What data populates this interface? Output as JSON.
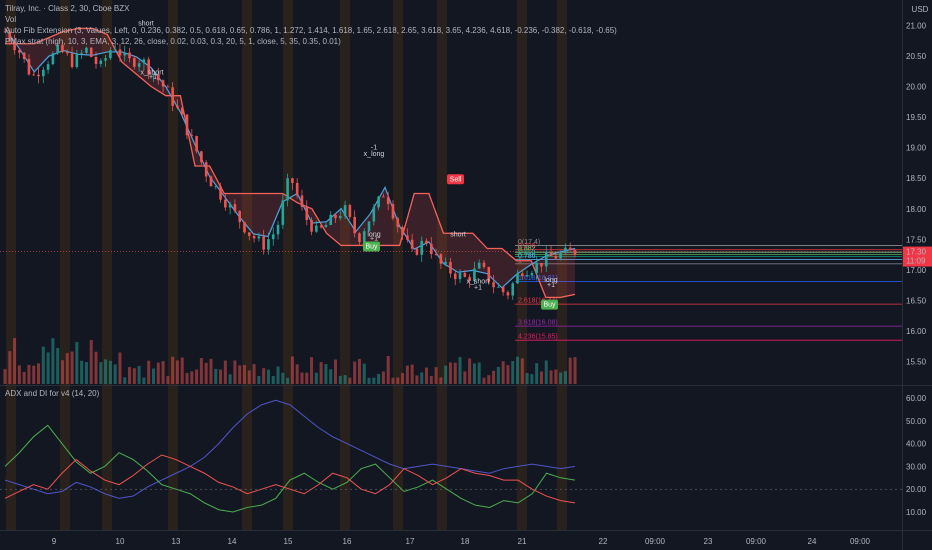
{
  "legend": {
    "title": "Tilray, Inc. · Class 2, 30, Cboe BZX",
    "vol": "Vol",
    "fib": "Auto Fib Extension (3, Values, Left, 0, 0.236, 0.382, 0.5, 0.618, 0.65, 0.786, 1, 1.272, 1.414, 1.618, 1.65, 2.618, 2.65, 3.618, 3.65, 4.236, 4.618, -0.236, -0.382, -0.618, -0.65)",
    "pmax": "PMax strat (high, 10, 3, EMA, 3, 12, 26, close, 0.02, 0.03, 0.3, 20, 5, 1, close, 5, 35, 0.35, 0.01)",
    "adx": "ADX and DI for v4 (14, 20)"
  },
  "colors": {
    "background": "#131722",
    "up": "#26a69a",
    "down": "#ef5350",
    "pmax_line": "#f5625a",
    "ema_line": "#4aa3df",
    "session_band": "#3a2a17",
    "adx_line": "#4f56c9",
    "di_plus": "#4caf50",
    "di_minus": "#ef5350"
  },
  "chart_data": [
    {
      "type": "candlestick",
      "title": "Tilray, Inc. · Class 2, 30, Cboe BZX",
      "currency": "USD",
      "ylim": [
        15.3,
        21.0
      ],
      "y_ticks": [
        "21.00",
        "20.50",
        "20.00",
        "19.50",
        "19.00",
        "18.50",
        "18.00",
        "17.50",
        "17.00",
        "16.50",
        "16.00",
        "15.50"
      ],
      "x_ticks": [
        "9",
        "10",
        "13",
        "14",
        "15",
        "16",
        "17",
        "18",
        "21",
        "22",
        "09:00",
        "23",
        "09:00",
        "24",
        "09:00"
      ],
      "last_price": "17.30",
      "countdown": "11:09",
      "close_path": [
        20.9,
        20.6,
        20.15,
        20.4,
        20.6,
        20.4,
        20.6,
        20.3,
        20.7,
        20.4,
        20.45,
        20.2,
        19.9,
        19.5,
        19.0,
        18.5,
        18.2,
        17.9,
        17.6,
        17.4,
        17.65,
        18.55,
        17.9,
        17.6,
        17.8,
        18.0,
        17.5,
        17.9,
        18.3,
        17.7,
        17.25,
        17.5,
        17.1,
        16.95,
        16.85,
        17.05,
        16.75,
        16.6,
        17.0,
        17.05,
        17.2,
        17.25,
        17.3
      ],
      "pmax_line": [
        20.7,
        20.7,
        20.7,
        20.8,
        20.9,
        20.95,
        20.95,
        20.85,
        20.4,
        20.2,
        20.0,
        19.85,
        19.85,
        18.7,
        18.7,
        18.25,
        18.25,
        18.25,
        18.25,
        18.25,
        18.1,
        18.0,
        17.6,
        17.4,
        17.4,
        17.4,
        17.4,
        17.4,
        18.25,
        18.25,
        17.6,
        17.6,
        17.6,
        17.35,
        17.35,
        17.15,
        17.15,
        16.55,
        16.55,
        16.6
      ],
      "annotations": [
        {
          "text": "short",
          "price": 21.0
        },
        {
          "text": "x_short",
          "price": 20.2
        },
        {
          "text": "+1",
          "price": 20.12
        },
        {
          "text": "-1",
          "price": 18.97
        },
        {
          "text": "x_long",
          "price": 18.86
        },
        {
          "text": "Sell",
          "price": 18.45
        },
        {
          "text": "long",
          "price": 17.55
        },
        {
          "text": "+1",
          "price": 17.48
        },
        {
          "text": "Buy",
          "price": 17.35
        },
        {
          "text": "short",
          "price": 17.55
        },
        {
          "text": "x_short",
          "price": 16.78
        },
        {
          "text": "+1",
          "price": 16.68
        },
        {
          "text": "long",
          "price": 16.8
        },
        {
          "text": "+1",
          "price": 16.72
        },
        {
          "text": "Buy",
          "price": 16.4
        }
      ],
      "fib_levels": [
        {
          "label": "0(17.4)",
          "price": 17.4,
          "color": "#8c8c8c"
        },
        {
          "label": "0.236",
          "price": 17.33,
          "color": "#f23645"
        },
        {
          "label": "0.382",
          "price": 17.29,
          "color": "#81c784"
        },
        {
          "label": "0.5",
          "price": 17.25,
          "color": "#4caf50"
        },
        {
          "label": "0.618",
          "price": 17.22,
          "color": "#089981"
        },
        {
          "label": "0.786",
          "price": 17.17,
          "color": "#64b5f6"
        },
        {
          "label": "1",
          "price": 17.1,
          "color": "#787b86"
        },
        {
          "label": "1.618(16.81)",
          "price": 16.81,
          "color": "#2962ff"
        },
        {
          "label": "2.618(16.44)",
          "price": 16.44,
          "color": "#f23645"
        },
        {
          "label": "3.618(16.08)",
          "price": 16.08,
          "color": "#9c27b0"
        },
        {
          "label": "4.236(15.85)",
          "price": 15.85,
          "color": "#e91e63"
        }
      ]
    },
    {
      "type": "line",
      "title": "ADX and DI for v4 (14, 20)",
      "ylim": [
        5,
        65
      ],
      "y_ticks": [
        "60.00",
        "50.00",
        "40.00",
        "30.00",
        "20.00",
        "10.00"
      ],
      "series": [
        {
          "name": "ADX",
          "values": [
            24,
            22,
            20,
            18,
            19,
            23,
            21,
            18,
            16,
            17,
            21,
            24,
            27,
            30,
            34,
            40,
            47,
            53,
            57,
            59,
            57,
            52,
            47,
            43,
            40,
            37,
            34,
            31,
            29,
            30,
            31,
            30,
            29,
            28,
            27,
            29,
            30,
            31,
            30,
            29,
            30
          ]
        },
        {
          "name": "+DI",
          "values": [
            30,
            36,
            43,
            48,
            40,
            32,
            27,
            30,
            36,
            33,
            28,
            22,
            20,
            18,
            14,
            11,
            10,
            12,
            13,
            16,
            24,
            27,
            23,
            20,
            23,
            29,
            31,
            25,
            19,
            21,
            24,
            20,
            16,
            13,
            12,
            15,
            14,
            18,
            27,
            25,
            24
          ]
        },
        {
          "name": "-DI",
          "values": [
            16,
            19,
            22,
            20,
            27,
            33,
            28,
            24,
            22,
            26,
            31,
            35,
            33,
            30,
            27,
            23,
            21,
            18,
            20,
            22,
            20,
            18,
            22,
            27,
            25,
            20,
            18,
            22,
            29,
            26,
            22,
            25,
            29,
            27,
            26,
            24,
            24,
            20,
            17,
            15,
            14
          ]
        }
      ]
    }
  ]
}
